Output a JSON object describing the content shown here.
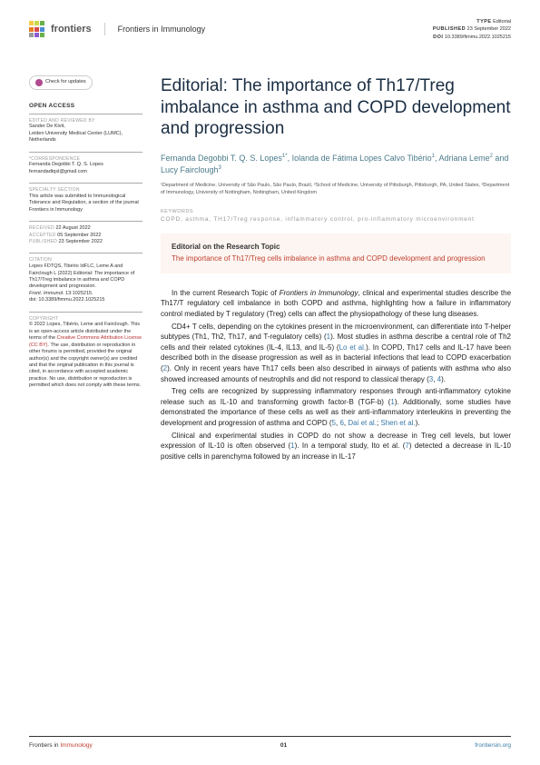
{
  "header": {
    "brand_name": "frontiers",
    "journal_name": "Frontiers in Immunology",
    "logo_colors": [
      "#f7c948",
      "#c8d94a",
      "#6ab04c",
      "#4a8cd6",
      "#8e5bd6",
      "#e67e22",
      "#d64a4a",
      "#999"
    ],
    "meta": {
      "type_label": "TYPE",
      "type_value": "Editorial",
      "pub_label": "PUBLISHED",
      "pub_value": "23 September 2022",
      "doi_label": "DOI",
      "doi_value": "10.3389/fimmu.2022.1025215"
    }
  },
  "sidebar": {
    "check_updates": "Check for updates",
    "open_access": "OPEN ACCESS",
    "edited_label": "EDITED AND REVIEWED BY",
    "edited_by_name": "Sander De Kivit,",
    "edited_by_aff": "Leiden University Medical Center (LUMC), Netherlands",
    "corr_label": "*CORRESPONDENCE",
    "corr_name": "Fernanda Degobbi T. Q. S. Lopes",
    "corr_email": "fernandadtqsl@gmail.com",
    "specialty_label": "SPECIALTY SECTION",
    "specialty_text": "This article was submitted to Immunological Tolerance and Regulation, a section of the journal Frontiers in Immunology",
    "received_label": "RECEIVED",
    "received_value": "22 August 2022",
    "accepted_label": "ACCEPTED",
    "accepted_value": "05 September 2022",
    "published_label": "PUBLISHED",
    "published_value": "23 September 2022",
    "citation_label": "CITATION",
    "citation_text": "Lopes FDTQS, Tibério IdFLC, Leme A and Fairclough L (2022) Editorial: The importance of Th17/Treg imbalance in asthma and COPD development and progression.",
    "citation_journal": "Front. Immunol.",
    "citation_ref": " 13:1025215.",
    "citation_doi": "doi: 10.3389/fimmu.2022.1025215",
    "copyright_label": "COPYRIGHT",
    "copyright_text1": "© 2022 Lopes, Tibério, Leme and Fairclough. This is an open-access article distributed under the terms of the ",
    "copyright_link": "Creative Commons Attribution License (CC BY)",
    "copyright_text2": ". The use, distribution or reproduction in other forums is permitted, provided the original author(s) and the copyright owner(s) are credited and that the original publication in this journal is cited, in accordance with accepted academic practice. No use, distribution or reproduction is permitted which does not comply with these terms."
  },
  "article": {
    "title": "Editorial: The importance of Th17/Treg imbalance in asthma and COPD development and progression",
    "authors_html": "Fernanda Degobbi T. Q. S. Lopes<sup>1*</sup>, Iolanda de Fátima Lopes Calvo Tibério<sup>1</sup>, Adriana Leme<sup>2</sup> and Lucy Fairclough<sup>3</sup>",
    "affiliations": "¹Department of Medicine, University of São Paulo, São Paulo, Brazil, ²School of Medicine, University of Pittsburgh, Pittsburgh, PA, United States, ³Department of Immunology, University of Nottingham, Nottingham, United Kingdom",
    "keywords_label": "KEYWORDS",
    "keywords": "COPD, asthma, TH17/Treg response, inflammatory control, pro-inflammatory microenvironment",
    "ed_box_title": "Editorial on the Research Topic",
    "ed_box_sub": "The importance of Th17/Treg cells imbalance in asthma and COPD development and progression",
    "paragraphs": [
      "In the current Research Topic of <em>Frontiers in Immunology</em>, clinical and experimental studies describe the Th17/T regulatory cell imbalance in both COPD and asthma, highlighting how a failure in inflammatory control mediated by T regulatory (Treg) cells can affect the physiopathology of these lung diseases.",
      "CD4+ T cells, depending on the cytokines present in the microenvironment, can differentiate into T-helper subtypes (Th1, Th2, Th17, and T-regulatory cells) (<span class=\"ref\">1</span>). Most studies in asthma describe a central role of Th2 cells and their related cytokines (IL-4, IL13, and IL-5) (<span class=\"ref\">Lo et al.</span>). In COPD, Th17 cells and IL-17 have been described both in the disease progression as well as in bacterial infections that lead to COPD exacerbation (<span class=\"ref\">2</span>). Only in recent years have Th17 cells been also described in airways of patients with asthma who also showed increased amounts of neutrophils and did not respond to classical therapy (<span class=\"ref\">3</span>, <span class=\"ref\">4</span>).",
      "Treg cells are recognized by suppressing inflammatory responses through anti-inflammatory cytokine release such as IL-10 and transforming growth factor-B (TGF-b) (<span class=\"ref\">1</span>). Additionally, some studies have demonstrated the importance of these cells as well as their anti-inflammatory interleukins in preventing the development and progression of asthma and COPD (<span class=\"ref\">5</span>, <span class=\"ref\">6</span>, <span class=\"ref\">Dai et al.</span>; <span class=\"ref\">Shen et al.</span>).",
      "Clinical and experimental studies in COPD do not show a decrease in Treg cell levels, but lower expression of IL-10 is often observed (<span class=\"ref\">1</span>). In a temporal study, Ito et al. (<span class=\"ref\">7</span>) detected a decrease in IL-10 positive cells in parenchyma followed by an increase in IL-17"
    ]
  },
  "footer": {
    "journal_prefix": "Frontiers in ",
    "journal_name": "Immunology",
    "page_number": "01",
    "site": "frontiersin.org"
  },
  "colors": {
    "title_color": "#1a2d42",
    "author_color": "#4a7a8a",
    "ref_color": "#3a7aa8",
    "accent_red": "#c04030",
    "ed_box_bg": "#fdf5f1",
    "text_color": "#222222",
    "muted": "#999999"
  }
}
